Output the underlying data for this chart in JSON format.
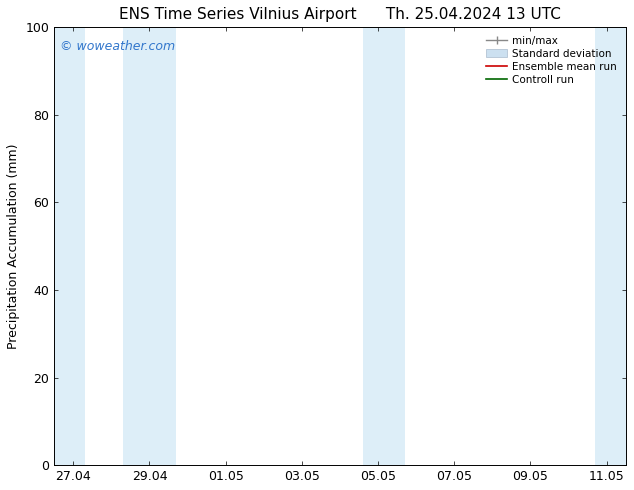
{
  "title_left": "ENS Time Series Vilnius Airport",
  "title_right": "Th. 25.04.2024 13 UTC",
  "ylabel": "Precipitation Accumulation (mm)",
  "ylim": [
    0,
    100
  ],
  "yticks": [
    0,
    20,
    40,
    60,
    80,
    100
  ],
  "watermark": "© woweather.com",
  "watermark_color": "#3377cc",
  "background_color": "#ffffff",
  "plot_bg_color": "#ffffff",
  "band_color": "#ddeef8",
  "shaded_regions": [
    [
      -0.5,
      0.3
    ],
    [
      1.3,
      2.7
    ],
    [
      7.6,
      8.7
    ],
    [
      13.7,
      14.5
    ]
  ],
  "x_tick_labels": [
    "27.04",
    "29.04",
    "01.05",
    "03.05",
    "05.05",
    "07.05",
    "09.05",
    "11.05"
  ],
  "x_ticks": [
    0,
    2,
    4,
    6,
    8,
    10,
    12,
    14
  ],
  "xlim": [
    -0.5,
    14.5
  ],
  "legend_labels": [
    "min/max",
    "Standard deviation",
    "Ensemble mean run",
    "Controll run"
  ],
  "title_fontsize": 11,
  "axis_label_fontsize": 9,
  "tick_fontsize": 9,
  "watermark_fontsize": 9
}
